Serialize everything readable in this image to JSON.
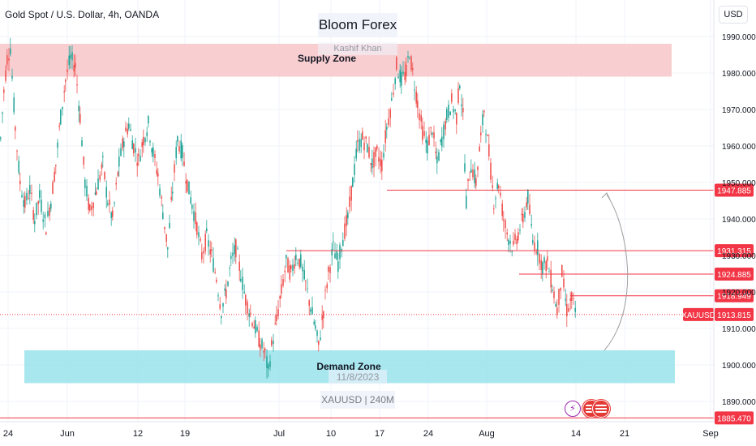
{
  "header": {
    "title": "Gold Spot / U.S. Dollar, 4h, OANDA",
    "currency_button": "USD"
  },
  "watermarks": {
    "brand": "Bloom Forex",
    "author": "Kashif Khan",
    "date": "11/8/2023",
    "symbol_interval": "XAUUSD | 240M"
  },
  "icons": [
    "lightning-icon",
    "us-flag-icon",
    "us-flag-icon"
  ],
  "chart_data": {
    "type": "candlestick",
    "ylim": [
      1881,
      1995
    ],
    "y_ticks": [
      1890,
      1900,
      1910,
      1920,
      1930,
      1940,
      1950,
      1960,
      1970,
      1980,
      1990
    ],
    "x_ticks": [
      "24",
      "Jun",
      "12",
      "19",
      "Jul",
      "10",
      "17",
      "24",
      "Aug",
      "14",
      "21",
      "Sep"
    ],
    "zones": [
      {
        "label": "Supply Zone",
        "low": 1979,
        "high": 1988,
        "color": "#f7c5c9"
      },
      {
        "label": "Demand Zone",
        "low": 1895,
        "high": 1904,
        "color": "#9ae3ec"
      }
    ],
    "levels": [
      {
        "value": 1947.885,
        "label": "1947.885"
      },
      {
        "value": 1931.315,
        "label": "1931.315"
      },
      {
        "value": 1924.885,
        "label": "1924.885"
      },
      {
        "value": 1918.949,
        "label": "1918.949"
      },
      {
        "value": 1885.47,
        "label": "1885.470"
      }
    ],
    "current_price": {
      "symbol": "XAUUSD",
      "value": 1913.815,
      "label": "1913.815"
    },
    "colors": {
      "up": "#26a69a",
      "down": "#ef5350",
      "level": "#f23645"
    },
    "path_points": [
      [
        0,
        1962
      ],
      [
        4,
        1975
      ],
      [
        8,
        1984
      ],
      [
        12,
        1987
      ],
      [
        18,
        1965
      ],
      [
        24,
        1950
      ],
      [
        30,
        1944
      ],
      [
        36,
        1948
      ],
      [
        42,
        1940
      ],
      [
        48,
        1946
      ],
      [
        56,
        1938
      ],
      [
        62,
        1945
      ],
      [
        68,
        1955
      ],
      [
        74,
        1968
      ],
      [
        80,
        1978
      ],
      [
        86,
        1984
      ],
      [
        92,
        1982
      ],
      [
        98,
        1968
      ],
      [
        104,
        1950
      ],
      [
        110,
        1942
      ],
      [
        118,
        1948
      ],
      [
        126,
        1955
      ],
      [
        132,
        1945
      ],
      [
        138,
        1940
      ],
      [
        146,
        1955
      ],
      [
        152,
        1962
      ],
      [
        158,
        1966
      ],
      [
        164,
        1960
      ],
      [
        170,
        1956
      ],
      [
        176,
        1962
      ],
      [
        182,
        1966
      ],
      [
        188,
        1958
      ],
      [
        194,
        1952
      ],
      [
        200,
        1942
      ],
      [
        206,
        1932
      ],
      [
        212,
        1948
      ],
      [
        218,
        1962
      ],
      [
        224,
        1958
      ],
      [
        230,
        1950
      ],
      [
        236,
        1944
      ],
      [
        242,
        1938
      ],
      [
        248,
        1930
      ],
      [
        254,
        1935
      ],
      [
        260,
        1930
      ],
      [
        266,
        1924
      ],
      [
        272,
        1915
      ],
      [
        278,
        1920
      ],
      [
        284,
        1928
      ],
      [
        290,
        1932
      ],
      [
        296,
        1925
      ],
      [
        302,
        1918
      ],
      [
        308,
        1914
      ],
      [
        314,
        1910
      ],
      [
        320,
        1906
      ],
      [
        326,
        1903
      ],
      [
        330,
        1898
      ],
      [
        334,
        1905
      ],
      [
        340,
        1912
      ],
      [
        346,
        1920
      ],
      [
        352,
        1928
      ],
      [
        358,
        1925
      ],
      [
        364,
        1930
      ],
      [
        370,
        1928
      ],
      [
        376,
        1922
      ],
      [
        382,
        1916
      ],
      [
        388,
        1910
      ],
      [
        392,
        1905
      ],
      [
        398,
        1915
      ],
      [
        404,
        1925
      ],
      [
        410,
        1932
      ],
      [
        416,
        1928
      ],
      [
        422,
        1935
      ],
      [
        428,
        1940
      ],
      [
        434,
        1950
      ],
      [
        440,
        1960
      ],
      [
        446,
        1962
      ],
      [
        452,
        1960
      ],
      [
        458,
        1955
      ],
      [
        464,
        1958
      ],
      [
        470,
        1955
      ],
      [
        476,
        1965
      ],
      [
        482,
        1972
      ],
      [
        488,
        1982
      ],
      [
        494,
        1978
      ],
      [
        500,
        1980
      ],
      [
        504,
        1986
      ],
      [
        508,
        1980
      ],
      [
        514,
        1972
      ],
      [
        520,
        1964
      ],
      [
        526,
        1960
      ],
      [
        532,
        1965
      ],
      [
        538,
        1955
      ],
      [
        544,
        1962
      ],
      [
        550,
        1968
      ],
      [
        556,
        1972
      ],
      [
        562,
        1968
      ],
      [
        566,
        1978
      ],
      [
        570,
        1968
      ],
      [
        574,
        1945
      ],
      [
        580,
        1955
      ],
      [
        586,
        1950
      ],
      [
        592,
        1962
      ],
      [
        596,
        1970
      ],
      [
        602,
        1958
      ],
      [
        608,
        1945
      ],
      [
        614,
        1950
      ],
      [
        620,
        1940
      ],
      [
        626,
        1935
      ],
      [
        632,
        1932
      ],
      [
        638,
        1936
      ],
      [
        644,
        1940
      ],
      [
        650,
        1946
      ],
      [
        656,
        1934
      ],
      [
        662,
        1932
      ],
      [
        668,
        1927
      ],
      [
        674,
        1928
      ],
      [
        680,
        1922
      ],
      [
        686,
        1915
      ],
      [
        692,
        1925
      ],
      [
        698,
        1915
      ],
      [
        704,
        1918
      ],
      [
        710,
        1913
      ]
    ]
  }
}
